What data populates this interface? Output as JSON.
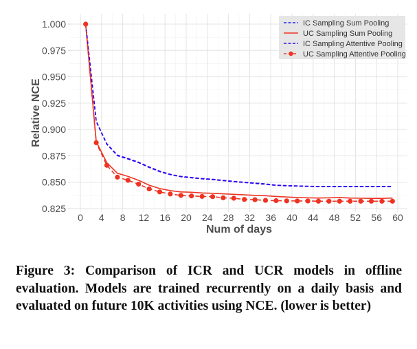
{
  "chart_data": {
    "type": "line",
    "title": "",
    "xlabel": "Num of days",
    "ylabel": "Relative NCE",
    "xlim": [
      -2,
      62
    ],
    "ylim": [
      0.825,
      1.0
    ],
    "xticks": [
      0,
      4,
      8,
      12,
      16,
      20,
      24,
      28,
      32,
      36,
      40,
      44,
      48,
      52,
      56,
      60
    ],
    "xtick_labels": [
      "0",
      "4",
      "8",
      "12",
      "16",
      "20",
      "24",
      "28",
      "32",
      "36",
      "40",
      "44",
      "48",
      "52",
      "56",
      "60"
    ],
    "yticks": [
      0.825,
      0.85,
      0.875,
      0.9,
      0.925,
      0.95,
      0.975,
      1.0
    ],
    "ytick_labels": [
      "0.825",
      "0.850",
      "0.875",
      "0.900",
      "0.925",
      "0.950",
      "0.975",
      "1.000"
    ],
    "grid": true,
    "legend_position": "top-right",
    "x": [
      1,
      3,
      5,
      7,
      9,
      11,
      13,
      15,
      17,
      19,
      21,
      23,
      25,
      27,
      29,
      31,
      33,
      35,
      37,
      39,
      41,
      43,
      45,
      47,
      49,
      51,
      53,
      55,
      57,
      59
    ],
    "series": [
      {
        "name": "IC Sampling Sum Pooling",
        "color": "#1a1aff",
        "style": "dashed",
        "marker": "none",
        "values": [
          1.0,
          0.9078,
          0.8865,
          0.8757,
          0.8725,
          0.869,
          0.8645,
          0.8605,
          0.8575,
          0.8555,
          0.8545,
          0.8535,
          0.8528,
          0.8518,
          0.8508,
          0.85,
          0.8492,
          0.8484,
          0.8472,
          0.8468,
          0.8465,
          0.8462,
          0.846,
          0.846,
          0.846,
          0.846,
          0.846,
          0.846,
          0.846,
          0.846
        ]
      },
      {
        "name": "UC Sampling Sum Pooling",
        "color": "#ee3322",
        "style": "solid",
        "marker": "none",
        "values": [
          1.0,
          0.8885,
          0.8685,
          0.8585,
          0.8555,
          0.8518,
          0.8472,
          0.844,
          0.842,
          0.8408,
          0.8405,
          0.8398,
          0.8395,
          0.839,
          0.8385,
          0.838,
          0.8375,
          0.8372,
          0.8365,
          0.836,
          0.8355,
          0.8352,
          0.835,
          0.8352,
          0.8355,
          0.835,
          0.8348,
          0.8347,
          0.8347,
          0.835
        ]
      },
      {
        "name": "IC Sampling Attentive Pooling",
        "color": "#3300ee",
        "style": "dashed",
        "marker": "none",
        "values": [
          1.0,
          0.9075,
          0.886,
          0.8752,
          0.872,
          0.8686,
          0.864,
          0.86,
          0.8572,
          0.8552,
          0.8542,
          0.8532,
          0.8525,
          0.8515,
          0.8505,
          0.8497,
          0.8489,
          0.848,
          0.847,
          0.8466,
          0.8463,
          0.846,
          0.8458,
          0.8458,
          0.8458,
          0.8458,
          0.8458,
          0.8458,
          0.8458,
          0.8458
        ]
      },
      {
        "name": "UC Sampling Attentive Pooling",
        "color": "#ee3322",
        "style": "dashed",
        "marker": "circle",
        "values": [
          1.0,
          0.8875,
          0.866,
          0.8548,
          0.8518,
          0.8482,
          0.8437,
          0.8408,
          0.8388,
          0.8375,
          0.837,
          0.8365,
          0.8363,
          0.8352,
          0.8348,
          0.8337,
          0.8334,
          0.8328,
          0.8325,
          0.8323,
          0.8322,
          0.8322,
          0.832,
          0.832,
          0.832,
          0.832,
          0.832,
          0.832,
          0.832,
          0.832
        ]
      }
    ]
  },
  "caption": "Figure 3: Comparison of ICR and UCR models in offline evaluation. Models are trained recurrently on a daily basis and evaluated on future 10K activities using NCE. (lower is better)"
}
